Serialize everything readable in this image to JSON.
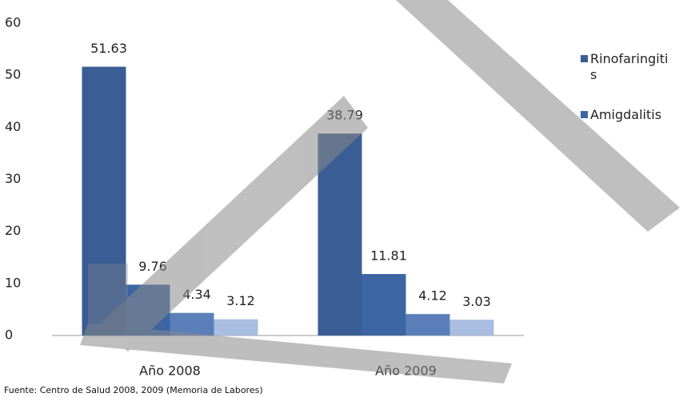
{
  "chart_data": {
    "type": "bar",
    "categories": [
      "Año 2008",
      "Año 2009"
    ],
    "series": [
      {
        "name": "Rinofaringitis",
        "color": "#395d94",
        "values": [
          51.63,
          38.79
        ]
      },
      {
        "name": "Amigdalitis",
        "color": "#3c66a3",
        "values": [
          9.76,
          11.81
        ]
      },
      {
        "color": "#5b80b9",
        "values": [
          4.34,
          4.12
        ]
      },
      {
        "color": "#a9bde0",
        "values": [
          3.12,
          3.03
        ]
      }
    ],
    "ylim": [
      0,
      60
    ],
    "yticks": [
      0,
      10,
      20,
      30,
      40,
      50,
      60
    ],
    "grid": false,
    "legend": "right",
    "source": "Fuente: Centro de Salud 2008, 2009 (Memoria de Labores)"
  }
}
